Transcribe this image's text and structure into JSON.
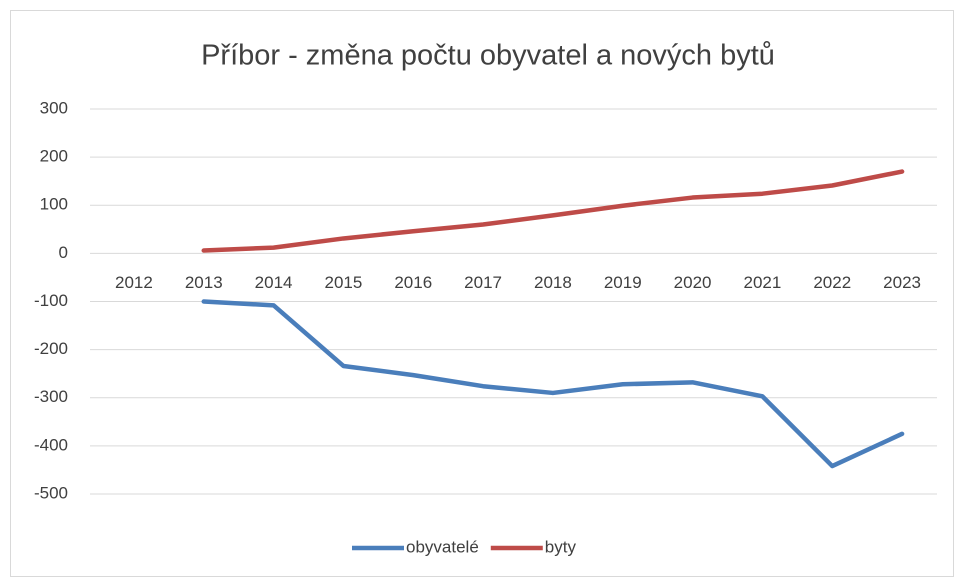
{
  "chart_data": {
    "type": "line",
    "title": "Příbor - změna počtu obyvatel a nových bytů",
    "categories": [
      "2012",
      "2013",
      "2014",
      "2015",
      "2016",
      "2017",
      "2018",
      "2019",
      "2020",
      "2021",
      "2022",
      "2023"
    ],
    "series": [
      {
        "name": "obyvatelé",
        "color": "#4a7ebb",
        "values": [
          null,
          -100,
          -108,
          -234,
          -253,
          -276,
          -290,
          -272,
          -268,
          -297,
          -442,
          -375
        ]
      },
      {
        "name": "byty",
        "color": "#be4b48",
        "values": [
          null,
          6,
          12,
          31,
          46,
          60,
          79,
          99,
          116,
          124,
          141,
          170
        ]
      }
    ],
    "ylim": [
      -500,
      300
    ],
    "yticks": [
      -500,
      -400,
      -300,
      -200,
      -100,
      0,
      100,
      200,
      300
    ],
    "grid": true,
    "legend": "bottom"
  }
}
